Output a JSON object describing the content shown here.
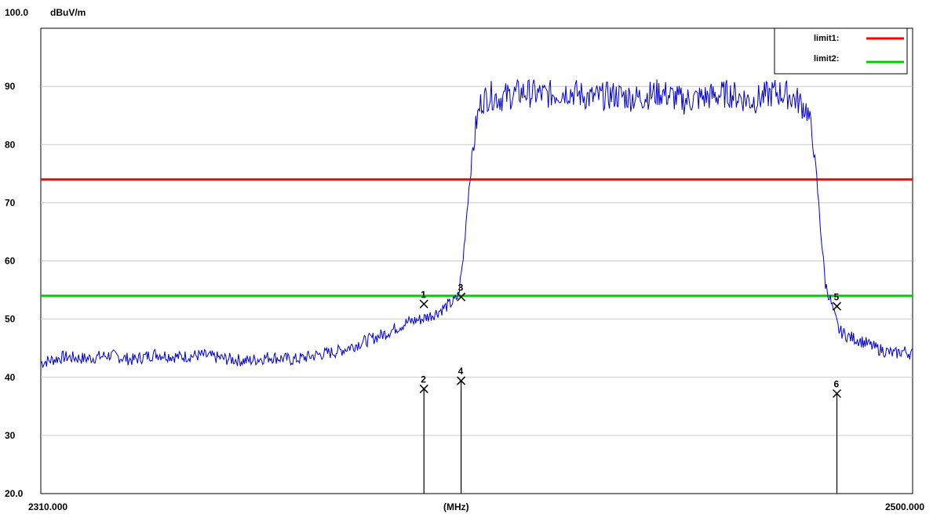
{
  "chart_data": {
    "type": "line",
    "ylabel_top": "100.0",
    "unit_label": "dBuV/m",
    "xlabel": "(MHz)",
    "x_start_label": "2310.000",
    "x_end_label": "2500.000",
    "xlim": [
      2310,
      2500
    ],
    "ylim": [
      20,
      100
    ],
    "y_tick_labels": [
      {
        "value": 20,
        "label": "20.0"
      },
      {
        "value": 30,
        "label": "30"
      },
      {
        "value": 40,
        "label": "40"
      },
      {
        "value": 50,
        "label": "50"
      },
      {
        "value": 60,
        "label": "60"
      },
      {
        "value": 70,
        "label": "70"
      },
      {
        "value": 80,
        "label": "80"
      },
      {
        "value": 90,
        "label": "90"
      }
    ],
    "grid": true,
    "legend_placement": "top-right",
    "legend": [
      {
        "name": "limit1:",
        "color": "#ff0000"
      },
      {
        "name": "limit2:",
        "color": "#00cc00"
      }
    ],
    "limit_lines": [
      {
        "name": "limit1:",
        "value": 74.0,
        "color": "#ff0000"
      },
      {
        "name": "limit2:",
        "value": 54.0,
        "color": "#00cc00"
      }
    ],
    "trace_color": "#0000cc",
    "series": [
      {
        "values_x": [
          2310,
          2315,
          2320,
          2325,
          2330,
          2335,
          2340,
          2345,
          2350,
          2355,
          2360,
          2365,
          2370,
          2375,
          2380,
          2385,
          2390,
          2393,
          2396,
          2398,
          2400,
          2401,
          2402,
          2403,
          2404,
          2405,
          2406,
          2408,
          2410,
          2415,
          2420,
          2425,
          2430,
          2435,
          2440,
          2445,
          2450,
          2455,
          2460,
          2465,
          2470,
          2473,
          2475,
          2477,
          2478,
          2479,
          2480,
          2481,
          2482,
          2483,
          2484,
          2486,
          2488,
          2490,
          2492,
          2494,
          2496,
          2498,
          2500
        ],
        "values_y": [
          42.5,
          43.5,
          43.2,
          43.8,
          43.0,
          44.0,
          43.5,
          43.8,
          43.2,
          42.8,
          43.5,
          43.0,
          43.8,
          44.5,
          46.0,
          47.5,
          49.5,
          50.0,
          51.0,
          52.0,
          53.0,
          54.0,
          60.0,
          70.0,
          78.0,
          84.0,
          87.5,
          88.5,
          88.0,
          89.0,
          88.5,
          89.2,
          88.0,
          88.5,
          88.0,
          89.0,
          87.5,
          88.2,
          88.8,
          87.5,
          89.0,
          88.5,
          87.5,
          86.0,
          82.0,
          75.0,
          65.0,
          56.0,
          53.5,
          50.5,
          48.0,
          47.0,
          46.5,
          45.8,
          45.0,
          44.5,
          44.0,
          44.5,
          44.0
        ]
      }
    ],
    "markers": [
      {
        "label": "1",
        "x": 2393.5,
        "y": 52.6
      },
      {
        "label": "2",
        "x": 2393.5,
        "y": 38.0
      },
      {
        "label": "3",
        "x": 2401.6,
        "y": 53.8
      },
      {
        "label": "4",
        "x": 2401.6,
        "y": 39.4
      },
      {
        "label": "5",
        "x": 2483.5,
        "y": 52.2
      },
      {
        "label": "6",
        "x": 2483.5,
        "y": 37.2
      }
    ]
  }
}
